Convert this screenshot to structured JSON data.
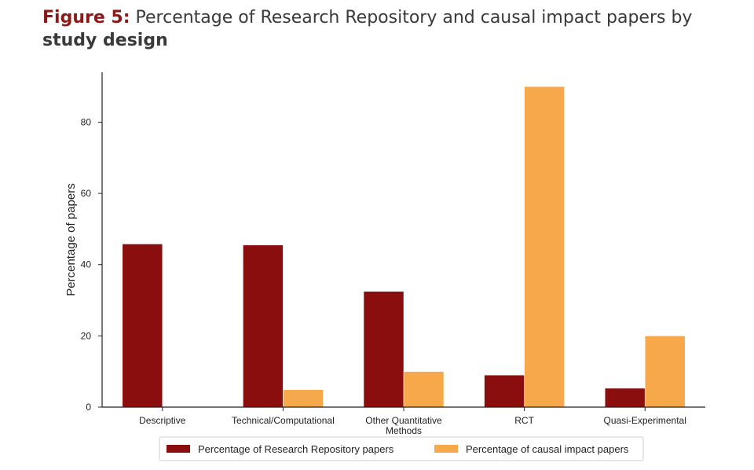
{
  "figure": {
    "label": "Figure 5:",
    "title": "Percentage of Research Repository and causal impact papers by",
    "title_bold": "study design"
  },
  "chart_data": {
    "type": "bar",
    "categories": [
      "Descriptive",
      "Technical/Computational",
      "Other Quantitative Methods",
      "RCT",
      "Quasi-Experimental"
    ],
    "category_lines": [
      [
        "Descriptive"
      ],
      [
        "Technical/Computational"
      ],
      [
        "Other Quantitative",
        "Methods"
      ],
      [
        "RCT"
      ],
      [
        "Quasi-Experimental"
      ]
    ],
    "series": [
      {
        "name": "Percentage of Research Repository papers",
        "color": "#8b0e0e",
        "values": [
          45.8,
          45.5,
          32.5,
          9.0,
          5.3
        ]
      },
      {
        "name": "Percentage of causal impact papers",
        "color": "#f7a84a",
        "values": [
          0,
          4.9,
          10.0,
          90.0,
          20.0
        ]
      }
    ],
    "xlabel": "",
    "ylabel": "Percentage of papers",
    "yticks": [
      0,
      20,
      40,
      60,
      80
    ],
    "ylim": [
      0,
      94
    ],
    "grid": false,
    "legend_position": "bottom"
  }
}
